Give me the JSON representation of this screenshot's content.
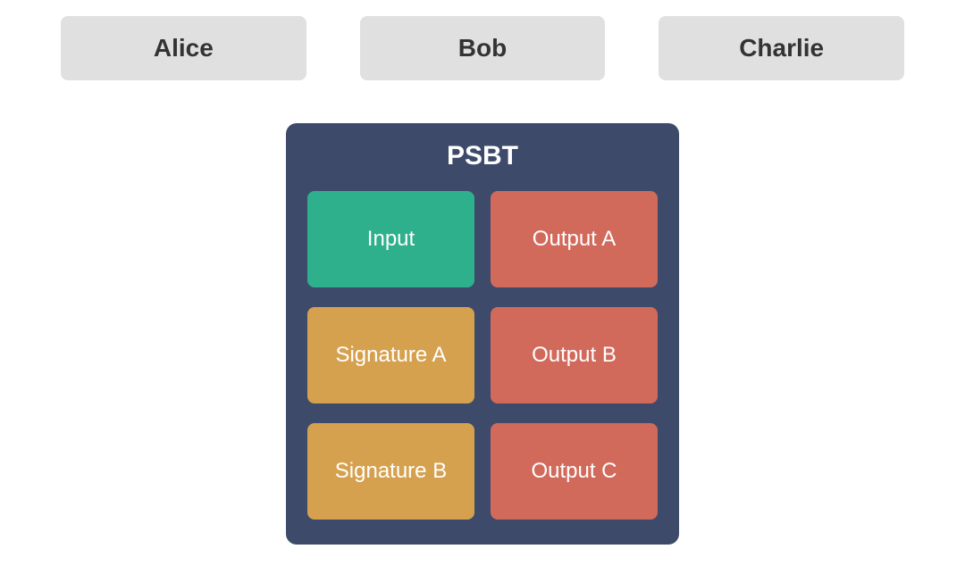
{
  "diagram": {
    "type": "infographic",
    "background_color": "#ffffff",
    "participants": [
      {
        "label": "Alice",
        "bg": "#e0e0e0",
        "text_color": "#333333"
      },
      {
        "label": "Bob",
        "bg": "#e0e0e0",
        "text_color": "#333333"
      },
      {
        "label": "Charlie",
        "bg": "#e0e0e0",
        "text_color": "#333333"
      }
    ],
    "participant_box": {
      "border_radius": 8,
      "font_size": 28,
      "font_weight": 600
    },
    "psbt": {
      "title": "PSBT",
      "title_color": "#ffffff",
      "title_fontsize": 30,
      "container_bg": "#3d4a6a",
      "container_border_radius": 12,
      "layout": {
        "cols": 2,
        "rows": 3
      },
      "cells": [
        {
          "label": "Input",
          "col": 0,
          "row": 0,
          "bg": "#2fb08c",
          "text_color": "#ffffff"
        },
        {
          "label": "Output A",
          "col": 1,
          "row": 0,
          "bg": "#d26a5c",
          "text_color": "#ffffff"
        },
        {
          "label": "Signature A",
          "col": 0,
          "row": 1,
          "bg": "#d6a14e",
          "text_color": "#ffffff"
        },
        {
          "label": "Output B",
          "col": 1,
          "row": 1,
          "bg": "#d26a5c",
          "text_color": "#ffffff"
        },
        {
          "label": "Signature B",
          "col": 0,
          "row": 2,
          "bg": "#d6a14e",
          "text_color": "#ffffff"
        },
        {
          "label": "Output C",
          "col": 1,
          "row": 2,
          "bg": "#d26a5c",
          "text_color": "#ffffff"
        }
      ],
      "cell_style": {
        "border_radius": 8,
        "font_size": 24,
        "font_weight": 500
      }
    }
  }
}
